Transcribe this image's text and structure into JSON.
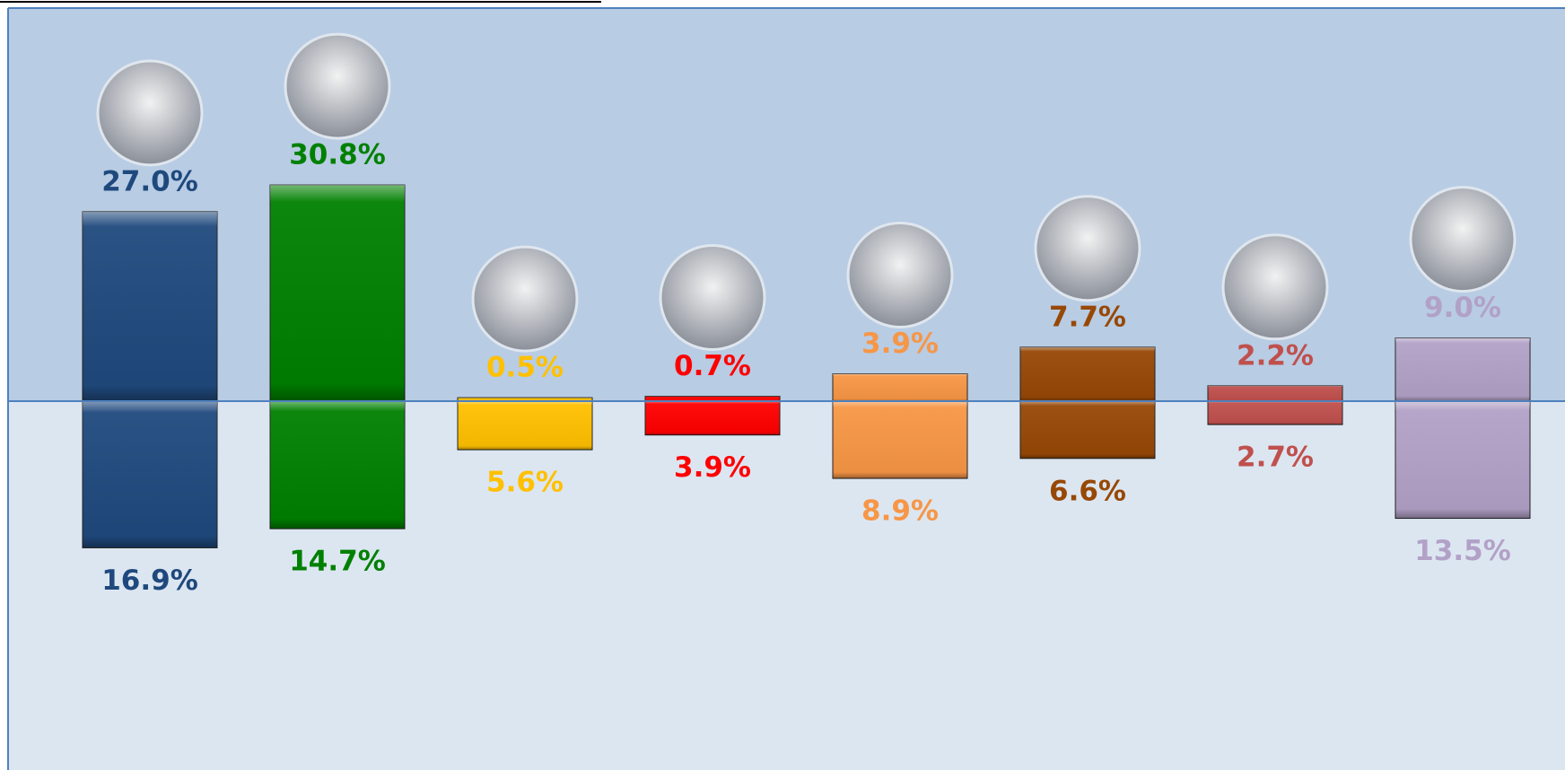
{
  "chart_data": {
    "type": "diverging_bar",
    "categories": [
      null,
      null,
      null,
      null,
      null,
      null,
      null,
      null
    ],
    "colors": [
      "#1f497d",
      "#008000",
      "#ffc000",
      "#ff0000",
      "#f79646",
      "#974806",
      "#c0504d",
      "#b2a1c7"
    ],
    "series": [
      {
        "values": [
          27.0,
          30.8,
          0.5,
          0.7,
          3.9,
          7.7,
          2.2,
          9.0
        ],
        "value_labels": [
          "27.0%",
          "30.8%",
          "0.5%",
          "0.7%",
          "3.9%",
          "7.7%",
          "2.2%",
          "9.0%"
        ]
      },
      {
        "axis": "y2",
        "values": [
          16.9,
          14.7,
          5.6,
          3.9,
          8.9,
          6.6,
          2.7,
          13.5
        ],
        "value_labels": [
          "16.9%",
          "14.7%",
          "5.6%",
          "3.9%",
          "8.9%",
          "6.6%",
          "2.7%",
          "13.5%"
        ]
      }
    ],
    "ylim": [
      0,
      56
    ],
    "y2lim": [
      0,
      42.5
    ]
  }
}
